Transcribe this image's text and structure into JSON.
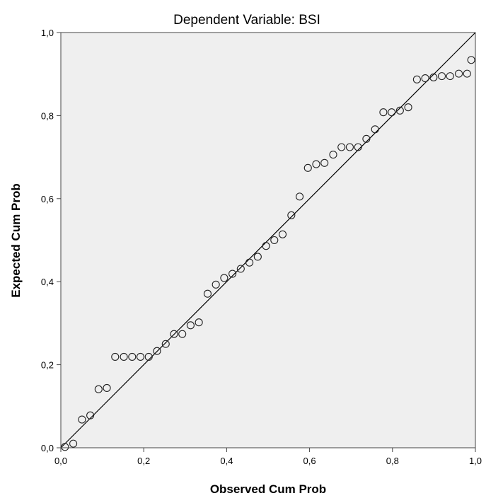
{
  "chart_data": {
    "type": "scatter",
    "title": "Dependent Variable: BSI",
    "xlabel": "Observed Cum Prob",
    "ylabel": "Expected Cum Prob",
    "xlim": [
      0,
      1
    ],
    "ylim": [
      0,
      1
    ],
    "x_ticks": [
      "0,0",
      "0,2",
      "0,4",
      "0,6",
      "0,8",
      "1,0"
    ],
    "y_ticks": [
      "0,0",
      "0,2",
      "0,4",
      "0,6",
      "0,8",
      "1,0"
    ],
    "reference_line": {
      "from": [
        0,
        0
      ],
      "to": [
        1,
        1
      ]
    },
    "grid": false,
    "plot_background": "#efefef",
    "marker": "open-circle",
    "points": {
      "x": [
        0.01,
        0.03,
        0.051,
        0.071,
        0.091,
        0.111,
        0.131,
        0.152,
        0.172,
        0.192,
        0.212,
        0.232,
        0.253,
        0.273,
        0.293,
        0.313,
        0.333,
        0.354,
        0.374,
        0.394,
        0.414,
        0.434,
        0.455,
        0.475,
        0.495,
        0.515,
        0.535,
        0.556,
        0.576,
        0.596,
        0.616,
        0.636,
        0.657,
        0.677,
        0.697,
        0.717,
        0.737,
        0.758,
        0.778,
        0.798,
        0.818,
        0.838,
        0.859,
        0.879,
        0.899,
        0.919,
        0.939,
        0.96,
        0.98,
        0.99
      ],
      "y": [
        0.002,
        0.01,
        0.068,
        0.078,
        0.141,
        0.144,
        0.219,
        0.219,
        0.219,
        0.219,
        0.219,
        0.233,
        0.25,
        0.274,
        0.274,
        0.295,
        0.302,
        0.371,
        0.393,
        0.409,
        0.419,
        0.431,
        0.446,
        0.46,
        0.486,
        0.5,
        0.514,
        0.56,
        0.605,
        0.674,
        0.683,
        0.686,
        0.706,
        0.724,
        0.724,
        0.724,
        0.744,
        0.767,
        0.808,
        0.808,
        0.812,
        0.82,
        0.887,
        0.89,
        0.892,
        0.895,
        0.895,
        0.901,
        0.901,
        0.934
      ]
    }
  }
}
